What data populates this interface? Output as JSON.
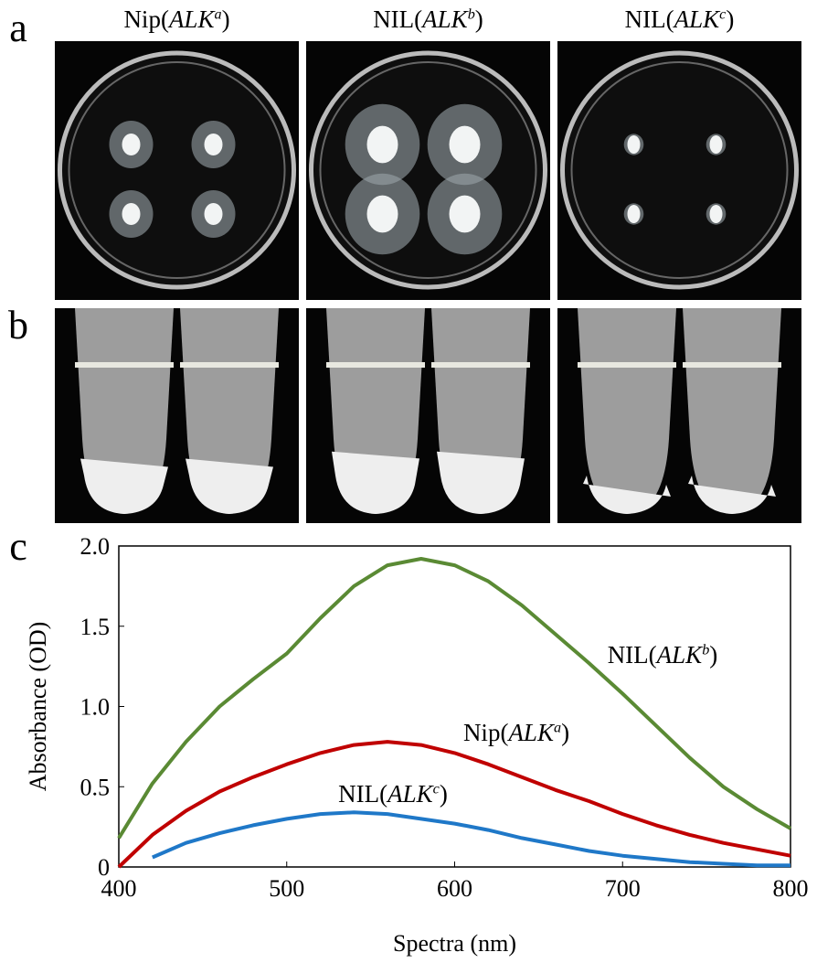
{
  "panels": [
    "a",
    "b",
    "c"
  ],
  "columns": [
    [
      "Nip(",
      "ALK",
      "a",
      ")"
    ],
    [
      "NIL(",
      "ALK",
      "b",
      ")"
    ],
    [
      "NIL(",
      "ALK",
      "c",
      ")"
    ]
  ],
  "chart_data": {
    "type": "line",
    "ylabel": "Absorbance (OD)",
    "xlabel": "Spectra (nm)",
    "x": [
      400,
      420,
      440,
      460,
      480,
      500,
      520,
      540,
      560,
      580,
      600,
      620,
      640,
      660,
      680,
      700,
      720,
      740,
      760,
      780,
      800
    ],
    "xlim": [
      400,
      800
    ],
    "xticks": [
      400,
      500,
      600,
      700,
      800
    ],
    "ylim": [
      0,
      2
    ],
    "yticks": [
      0,
      0.5,
      {
        "value": 1,
        "label": "1.0"
      },
      1.5,
      {
        "value": 2,
        "label": "2.0"
      }
    ],
    "series": [
      {
        "name": [
          "NIL(",
          "ALK",
          "b",
          ")"
        ],
        "color": "#5a8a34",
        "values": [
          0.18,
          0.52,
          0.78,
          1.0,
          1.17,
          1.33,
          1.55,
          1.75,
          1.88,
          1.92,
          1.88,
          1.78,
          1.63,
          1.45,
          1.27,
          1.08,
          0.88,
          0.68,
          0.5,
          0.36,
          0.24
        ]
      },
      {
        "name": [
          "Nip(",
          "ALK",
          "a",
          ")"
        ],
        "color": "#c00000",
        "values": [
          0,
          0.2,
          0.35,
          0.47,
          0.56,
          0.64,
          0.71,
          0.76,
          0.78,
          0.76,
          0.71,
          0.64,
          0.56,
          0.48,
          0.41,
          0.33,
          0.26,
          0.2,
          0.15,
          0.11,
          0.07
        ]
      },
      {
        "name": [
          "NIL(",
          "ALK",
          "c",
          ")"
        ],
        "color": "#1f78c8",
        "values": [
          null,
          0.06,
          0.15,
          0.21,
          0.26,
          0.3,
          0.33,
          0.34,
          0.33,
          0.3,
          0.27,
          0.23,
          0.18,
          0.14,
          0.1,
          0.07,
          0.05,
          0.03,
          0.02,
          0.01,
          0.01
        ]
      }
    ]
  }
}
